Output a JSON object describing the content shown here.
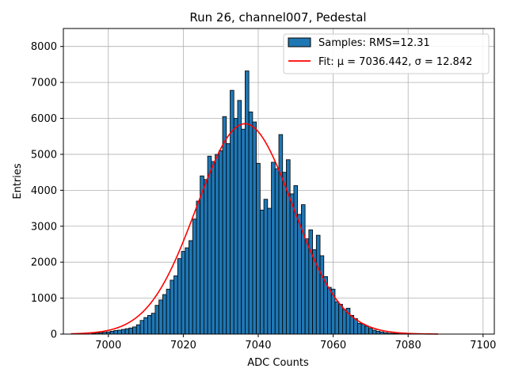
{
  "chart_data": {
    "type": "bar",
    "title": "Run 26, channel007, Pedestal",
    "xlabel": "ADC Counts",
    "ylabel": "Entries",
    "xlim": [
      6988,
      7103
    ],
    "ylim": [
      0,
      8500
    ],
    "xticks": [
      7000,
      7020,
      7040,
      7060,
      7080,
      7100
    ],
    "yticks": [
      0,
      1000,
      2000,
      3000,
      4000,
      5000,
      6000,
      7000,
      8000
    ],
    "grid": true,
    "legend": {
      "placement": "top-right",
      "entries": [
        {
          "kind": "bar",
          "label": "Samples: RMS=12.31"
        },
        {
          "kind": "line",
          "label": "Fit: μ = 7036.442, σ = 12.842"
        }
      ]
    },
    "colors": {
      "bars": "#1f77b4",
      "bar_edge": "#000000",
      "fit": "#ff0000",
      "grid": "#b0b0b0"
    },
    "histogram": {
      "bin_width": 1,
      "bins": [
        {
          "x": 6996,
          "y": 20
        },
        {
          "x": 6997,
          "y": 30
        },
        {
          "x": 6998,
          "y": 40
        },
        {
          "x": 6999,
          "y": 50
        },
        {
          "x": 7000,
          "y": 60
        },
        {
          "x": 7001,
          "y": 80
        },
        {
          "x": 7002,
          "y": 100
        },
        {
          "x": 7003,
          "y": 110
        },
        {
          "x": 7004,
          "y": 130
        },
        {
          "x": 7005,
          "y": 150
        },
        {
          "x": 7006,
          "y": 170
        },
        {
          "x": 7007,
          "y": 200
        },
        {
          "x": 7008,
          "y": 260
        },
        {
          "x": 7009,
          "y": 380
        },
        {
          "x": 7010,
          "y": 460
        },
        {
          "x": 7011,
          "y": 520
        },
        {
          "x": 7012,
          "y": 580
        },
        {
          "x": 7013,
          "y": 800
        },
        {
          "x": 7014,
          "y": 950
        },
        {
          "x": 7015,
          "y": 1100
        },
        {
          "x": 7016,
          "y": 1250
        },
        {
          "x": 7017,
          "y": 1500
        },
        {
          "x": 7018,
          "y": 1620
        },
        {
          "x": 7019,
          "y": 2100
        },
        {
          "x": 7020,
          "y": 2300
        },
        {
          "x": 7021,
          "y": 2400
        },
        {
          "x": 7022,
          "y": 2600
        },
        {
          "x": 7023,
          "y": 3200
        },
        {
          "x": 7024,
          "y": 3700
        },
        {
          "x": 7025,
          "y": 4400
        },
        {
          "x": 7026,
          "y": 4300
        },
        {
          "x": 7027,
          "y": 4950
        },
        {
          "x": 7028,
          "y": 4800
        },
        {
          "x": 7029,
          "y": 5000
        },
        {
          "x": 7030,
          "y": 5100
        },
        {
          "x": 7031,
          "y": 6050
        },
        {
          "x": 7032,
          "y": 5300
        },
        {
          "x": 7033,
          "y": 6780
        },
        {
          "x": 7034,
          "y": 6000
        },
        {
          "x": 7035,
          "y": 6500
        },
        {
          "x": 7036,
          "y": 5700
        },
        {
          "x": 7037,
          "y": 7320
        },
        {
          "x": 7038,
          "y": 6180
        },
        {
          "x": 7039,
          "y": 5900
        },
        {
          "x": 7040,
          "y": 4750
        },
        {
          "x": 7041,
          "y": 3450
        },
        {
          "x": 7042,
          "y": 3750
        },
        {
          "x": 7043,
          "y": 3500
        },
        {
          "x": 7044,
          "y": 4780
        },
        {
          "x": 7045,
          "y": 4600
        },
        {
          "x": 7046,
          "y": 5550
        },
        {
          "x": 7047,
          "y": 4500
        },
        {
          "x": 7048,
          "y": 4850
        },
        {
          "x": 7049,
          "y": 3900
        },
        {
          "x": 7050,
          "y": 4130
        },
        {
          "x": 7051,
          "y": 3330
        },
        {
          "x": 7052,
          "y": 3600
        },
        {
          "x": 7053,
          "y": 2650
        },
        {
          "x": 7054,
          "y": 2900
        },
        {
          "x": 7055,
          "y": 2350
        },
        {
          "x": 7056,
          "y": 2750
        },
        {
          "x": 7057,
          "y": 2180
        },
        {
          "x": 7058,
          "y": 1600
        },
        {
          "x": 7059,
          "y": 1300
        },
        {
          "x": 7060,
          "y": 1250
        },
        {
          "x": 7061,
          "y": 900
        },
        {
          "x": 7062,
          "y": 830
        },
        {
          "x": 7063,
          "y": 680
        },
        {
          "x": 7064,
          "y": 720
        },
        {
          "x": 7065,
          "y": 520
        },
        {
          "x": 7066,
          "y": 430
        },
        {
          "x": 7067,
          "y": 300
        },
        {
          "x": 7068,
          "y": 280
        },
        {
          "x": 7069,
          "y": 220
        },
        {
          "x": 7070,
          "y": 160
        },
        {
          "x": 7071,
          "y": 110
        },
        {
          "x": 7072,
          "y": 80
        },
        {
          "x": 7073,
          "y": 60
        },
        {
          "x": 7074,
          "y": 40
        },
        {
          "x": 7075,
          "y": 25
        },
        {
          "x": 7076,
          "y": 20
        },
        {
          "x": 7077,
          "y": 15
        },
        {
          "x": 7078,
          "y": 10
        }
      ]
    },
    "fit": {
      "name": "Fit: μ = 7036.442, σ = 12.842",
      "mu": 7036.442,
      "sigma": 12.842,
      "amplitude": 5850,
      "x_range": [
        6990,
        7088
      ]
    }
  }
}
